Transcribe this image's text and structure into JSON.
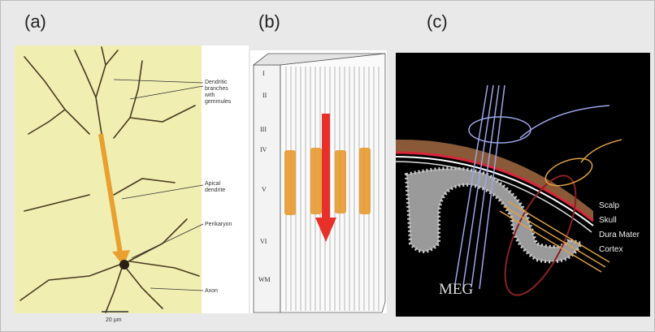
{
  "panels": [
    {
      "label": "(a)",
      "annotations": [
        {
          "lines": [
            "Dendritic",
            "branches",
            "with",
            "gemmules"
          ]
        },
        {
          "lines": [
            "Apical",
            "dendrite"
          ]
        },
        {
          "lines": [
            "Perikaryon"
          ]
        },
        {
          "lines": [
            "Axon"
          ]
        }
      ],
      "scale_bar": "20 µm"
    },
    {
      "label": "(b)",
      "layers": [
        "I",
        "II",
        "III",
        "IV",
        "V",
        "VI",
        "WM"
      ]
    },
    {
      "label": "(c)",
      "layers": [
        "Scalp",
        "Skull",
        "Dura Mater",
        "Cortex"
      ],
      "caption": "MEG"
    }
  ]
}
